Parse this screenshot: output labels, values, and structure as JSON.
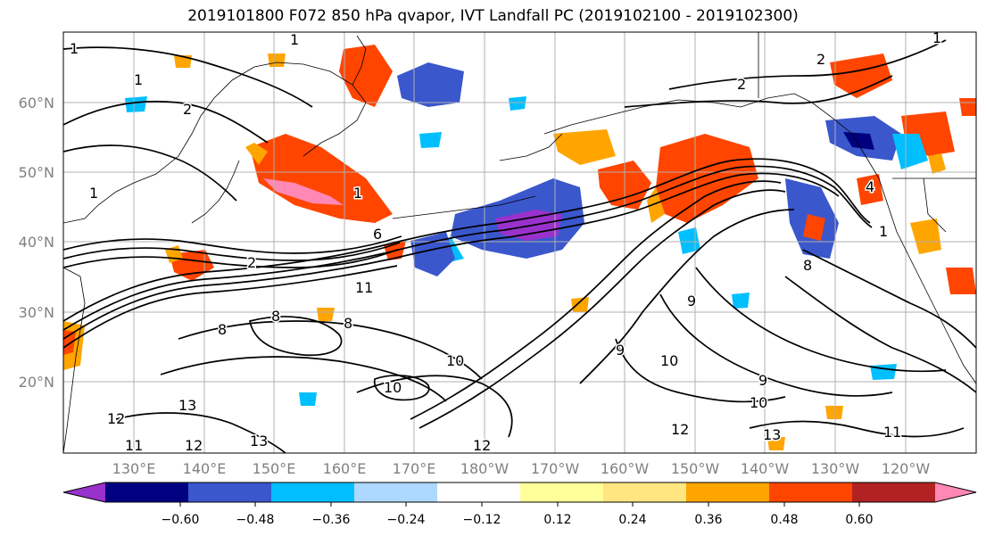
{
  "title": "2019101800 F072 850 hPa qvapor, IVT Landfall PC (2019102100 - 2019102300)",
  "lat_labels": [
    "60°N",
    "50°N",
    "40°N",
    "30°N",
    "20°N"
  ],
  "lon_labels": [
    "130°E",
    "140°E",
    "150°E",
    "160°E",
    "170°E",
    "180°W",
    "170°W",
    "160°W",
    "150°W",
    "140°W",
    "130°W",
    "120°W"
  ],
  "colorbar": {
    "colors": [
      "#9932cc",
      "#000080",
      "#3a57cc",
      "#00bfff",
      "#add8ff",
      "#ffffff",
      "#ffff99",
      "#ffe680",
      "#ffa500",
      "#ff4500",
      "#b22222",
      "#ff88b4"
    ],
    "tick_labels": [
      "−0.60",
      "−0.48",
      "−0.36",
      "−0.24",
      "−0.12",
      "0.12",
      "0.24",
      "0.36",
      "0.48",
      "0.60"
    ]
  },
  "contour_labels": [
    "1",
    "1",
    "1",
    "2",
    "1",
    "2",
    "1",
    "2",
    "1",
    "2",
    "6",
    "11",
    "8",
    "8",
    "8",
    "10",
    "9",
    "9",
    "10",
    "9",
    "10",
    "8",
    "12",
    "13",
    "13",
    "12",
    "11",
    "12",
    "13",
    "11",
    "12",
    "10",
    "4",
    "1"
  ]
}
